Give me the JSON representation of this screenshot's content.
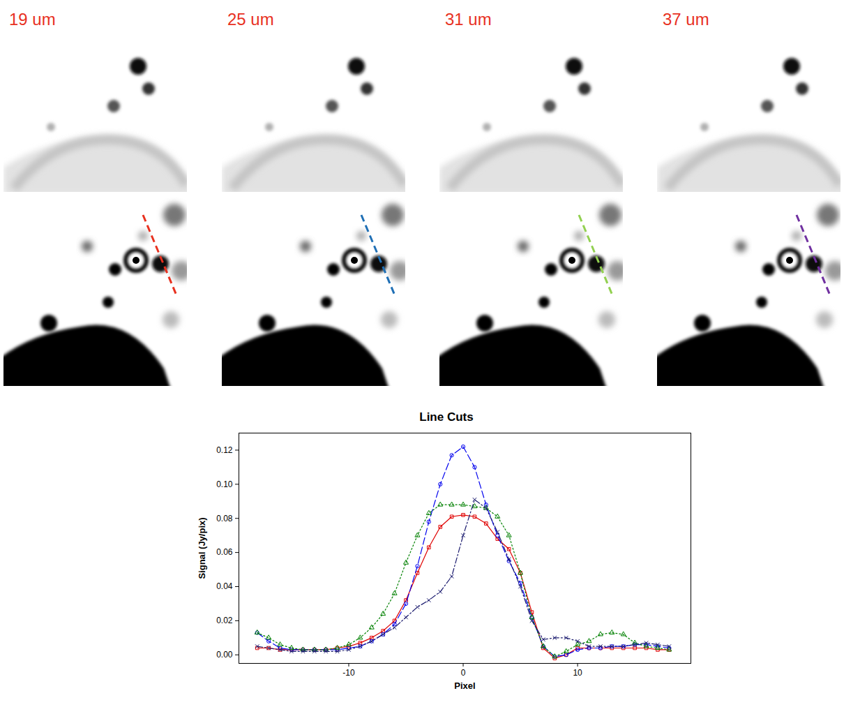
{
  "chart_data": {
    "type": "line",
    "title": "Line Cuts",
    "x_label": "Pixel",
    "y_label": "Signal (Jy/pix)",
    "x": [
      -18,
      -17,
      -16,
      -15,
      -14,
      -13,
      -12,
      -11,
      -10,
      -9,
      -8,
      -7,
      -6,
      -5,
      -4,
      -3,
      -2,
      -1,
      0,
      1,
      2,
      3,
      4,
      5,
      6,
      7,
      8,
      9,
      10,
      11,
      12,
      13,
      14,
      15,
      16,
      17,
      18
    ],
    "series": [
      {
        "color": "#e00000",
        "marker": "square",
        "line_style": "solid",
        "values": [
          0.004,
          0.004,
          0.003,
          0.003,
          0.003,
          0.003,
          0.003,
          0.004,
          0.005,
          0.007,
          0.01,
          0.014,
          0.02,
          0.032,
          0.048,
          0.063,
          0.075,
          0.081,
          0.082,
          0.081,
          0.077,
          0.068,
          0.062,
          0.048,
          0.025,
          0.004,
          -0.002,
          0.0,
          0.004,
          0.004,
          0.004,
          0.004,
          0.004,
          0.004,
          0.004,
          0.003,
          0.003
        ]
      },
      {
        "color": "#0000ee",
        "marker": "circle",
        "line_style": "dashed",
        "values": [
          0.013,
          0.008,
          0.004,
          0.003,
          0.003,
          0.003,
          0.003,
          0.003,
          0.004,
          0.005,
          0.008,
          0.012,
          0.018,
          0.03,
          0.052,
          0.078,
          0.1,
          0.117,
          0.122,
          0.11,
          0.088,
          0.07,
          0.055,
          0.042,
          0.022,
          0.005,
          -0.001,
          0.0,
          0.003,
          0.004,
          0.004,
          0.005,
          0.005,
          0.006,
          0.006,
          0.005,
          0.004
        ]
      },
      {
        "color": "#008000",
        "marker": "triangle",
        "line_style": "dotted",
        "values": [
          0.013,
          0.01,
          0.006,
          0.004,
          0.003,
          0.003,
          0.003,
          0.004,
          0.006,
          0.01,
          0.016,
          0.024,
          0.036,
          0.054,
          0.07,
          0.083,
          0.088,
          0.088,
          0.088,
          0.087,
          0.086,
          0.081,
          0.07,
          0.048,
          0.022,
          0.005,
          -0.001,
          0.002,
          0.006,
          0.008,
          0.012,
          0.013,
          0.012,
          0.007,
          0.005,
          0.004,
          0.003
        ]
      },
      {
        "color": "#1a1a6e",
        "marker": "x",
        "line_style": "dashdot",
        "values": [
          0.005,
          0.004,
          0.003,
          0.002,
          0.002,
          0.002,
          0.002,
          0.002,
          0.003,
          0.005,
          0.008,
          0.012,
          0.016,
          0.022,
          0.028,
          0.032,
          0.037,
          0.046,
          0.07,
          0.091,
          0.086,
          0.072,
          0.056,
          0.04,
          0.02,
          0.009,
          0.01,
          0.01,
          0.008,
          0.005,
          0.005,
          0.005,
          0.005,
          0.006,
          0.007,
          0.006,
          0.005
        ]
      }
    ],
    "xlim": [
      -19.6,
      19.9
    ],
    "xticks": [
      -10,
      0,
      10
    ],
    "ylim": [
      -0.005,
      0.13
    ],
    "yticks": [
      {
        "value": 0,
        "label": "0.00"
      },
      {
        "value": 0.02,
        "label": "0.02"
      },
      {
        "value": 0.04,
        "label": "0.04"
      },
      {
        "value": 0.06,
        "label": "0.06"
      },
      {
        "value": 0.08,
        "label": "0.08"
      },
      {
        "value": 0.1,
        "label": "0.10"
      },
      {
        "value": 0.12,
        "label": "0.12"
      }
    ],
    "grid": false
  },
  "panels": [
    {
      "label": "19 um",
      "color": "#e8311f"
    },
    {
      "label": "25 um",
      "color": "#1f6fb5"
    },
    {
      "label": "31 um",
      "color": "#92d050"
    },
    {
      "label": "37 um",
      "color": "#7030a0"
    }
  ]
}
